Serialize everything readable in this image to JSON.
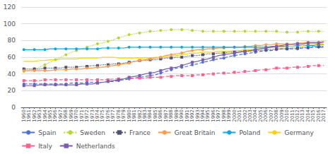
{
  "chart_data": {
    "type": "line",
    "x": [
      1960,
      1961,
      1962,
      1963,
      1964,
      1965,
      1966,
      1967,
      1968,
      1969,
      1970,
      1971,
      1972,
      1973,
      1974,
      1975,
      1976,
      1977,
      1978,
      1979,
      1980,
      1981,
      1982,
      1983,
      1984,
      1985,
      1986,
      1987,
      1988,
      1989,
      1990,
      1991,
      1992,
      1993,
      1994,
      1995,
      1996,
      1997,
      1998,
      1999,
      2000,
      2001,
      2002,
      2003,
      2004,
      2005,
      2006,
      2007,
      2008,
      2009,
      2010,
      2011,
      2012,
      2013,
      2014,
      2015,
      2016,
      2017
    ],
    "series": [
      {
        "name": "Spain",
        "marker": "circle",
        "line_style": "dashed",
        "values": [
          28,
          28,
          28,
          28,
          28,
          28,
          28,
          28,
          28,
          29,
          29,
          29,
          30,
          30,
          30,
          30,
          31,
          31,
          32,
          33,
          34,
          35,
          36,
          37,
          38,
          39,
          41,
          43,
          45,
          47,
          48,
          49,
          51,
          52,
          54,
          55,
          57,
          58,
          59,
          61,
          62,
          63,
          64,
          65,
          66,
          67,
          68,
          68,
          69,
          70,
          70,
          70,
          70,
          71,
          71,
          72,
          72,
          72
        ]
      },
      {
        "name": "Sweden",
        "marker": "circle",
        "line_style": "dotted",
        "values": [
          43,
          44,
          46,
          48,
          51,
          54,
          57,
          60,
          63,
          66,
          68,
          70,
          72,
          74,
          76,
          77,
          79,
          81,
          83,
          85,
          87,
          88,
          89,
          90,
          91,
          91,
          92,
          92,
          93,
          93,
          93,
          93,
          92,
          92,
          91,
          91,
          91,
          91,
          91,
          91,
          91,
          91,
          91,
          91,
          91,
          91,
          91,
          91,
          91,
          90,
          90,
          90,
          90,
          91,
          91,
          91,
          91,
          91
        ]
      },
      {
        "name": "France",
        "marker": "square",
        "line_style": "dotted",
        "values": [
          46,
          46,
          46,
          46,
          47,
          47,
          47,
          47,
          48,
          48,
          48,
          49,
          49,
          50,
          50,
          51,
          51,
          52,
          52,
          53,
          54,
          55,
          56,
          56,
          57,
          57,
          58,
          59,
          59,
          60,
          60,
          61,
          62,
          62,
          63,
          64,
          64,
          65,
          65,
          66,
          66,
          67,
          67,
          67,
          68,
          68,
          69,
          69,
          70,
          70,
          70,
          71,
          71,
          72,
          72,
          73,
          73,
          73
        ]
      },
      {
        "name": "Great Britain",
        "marker": "circle",
        "line_style": "solid",
        "values": [
          44,
          44,
          44,
          44,
          44,
          44,
          45,
          45,
          45,
          46,
          46,
          46,
          47,
          47,
          48,
          48,
          49,
          50,
          51,
          52,
          53,
          55,
          56,
          57,
          58,
          59,
          60,
          62,
          63,
          64,
          65,
          67,
          68,
          69,
          69,
          70,
          70,
          71,
          71,
          72,
          72,
          72,
          73,
          73,
          74,
          74,
          75,
          75,
          76,
          76,
          76,
          76,
          77,
          77,
          78,
          78,
          78,
          79
        ]
      },
      {
        "name": "Poland",
        "marker": "circle",
        "line_style": "solid",
        "values": [
          69,
          69,
          69,
          69,
          69,
          70,
          70,
          70,
          70,
          70,
          70,
          70,
          70,
          70,
          70,
          71,
          71,
          71,
          71,
          71,
          72,
          72,
          72,
          72,
          72,
          72,
          72,
          72,
          72,
          72,
          72,
          72,
          72,
          72,
          72,
          72,
          72,
          72,
          72,
          72,
          72,
          72,
          72,
          72,
          72,
          72,
          72,
          73,
          73,
          73,
          73,
          73,
          74,
          74,
          74,
          74,
          75,
          75
        ]
      },
      {
        "name": "Germany",
        "marker": "none",
        "line_style": "solid",
        "values": [
          55,
          55,
          55,
          56,
          56,
          57,
          57,
          58,
          58,
          58,
          58,
          59,
          59,
          59,
          59,
          60,
          60,
          60,
          59,
          59,
          59,
          59,
          59,
          59,
          59,
          60,
          60,
          61,
          61,
          62,
          63,
          64,
          65,
          65,
          66,
          66,
          66,
          67,
          67,
          67,
          68,
          68,
          69,
          69,
          70,
          70,
          71,
          72,
          72,
          72,
          73,
          73,
          73,
          74,
          75,
          75,
          76,
          76
        ]
      },
      {
        "name": "Italy",
        "marker": "square",
        "line_style": "dashed",
        "values": [
          32,
          32,
          32,
          32,
          33,
          33,
          33,
          33,
          33,
          33,
          33,
          33,
          33,
          33,
          33,
          33,
          33,
          34,
          34,
          34,
          35,
          35,
          35,
          35,
          36,
          36,
          36,
          37,
          37,
          38,
          38,
          38,
          38,
          39,
          39,
          40,
          40,
          41,
          41,
          41,
          42,
          42,
          43,
          43,
          44,
          45,
          45,
          46,
          47,
          47,
          47,
          48,
          48,
          48,
          49,
          50,
          50,
          50
        ]
      },
      {
        "name": "Netherlands",
        "marker": "square",
        "line_style": "solid",
        "values": [
          26,
          26,
          26,
          27,
          27,
          27,
          27,
          27,
          27,
          27,
          27,
          28,
          28,
          28,
          29,
          30,
          31,
          32,
          33,
          34,
          36,
          37,
          38,
          40,
          41,
          42,
          44,
          46,
          47,
          48,
          50,
          52,
          54,
          55,
          57,
          58,
          60,
          62,
          63,
          64,
          65,
          66,
          67,
          68,
          69,
          70,
          71,
          72,
          73,
          74,
          75,
          75,
          76,
          76,
          77,
          77,
          77,
          78
        ]
      }
    ],
    "xlim": [
      1959.5,
      2017.5
    ],
    "xticks": [
      1960,
      1961,
      1962,
      1963,
      1964,
      1965,
      1966,
      1967,
      1968,
      1969,
      1970,
      1971,
      1972,
      1973,
      1974,
      1975,
      1976,
      1977,
      1978,
      1979,
      1980,
      1981,
      1982,
      1983,
      1984,
      1985,
      1986,
      1987,
      1988,
      1989,
      1990,
      1991,
      1992,
      1993,
      1994,
      1995,
      1996,
      1997,
      1998,
      1999,
      2000,
      2001,
      2002,
      2003,
      2004,
      2005,
      2006,
      2007,
      2008,
      2009,
      2010,
      2011,
      2012,
      2013,
      2014,
      2015,
      2016,
      2017
    ],
    "ylim": [
      0,
      120
    ],
    "yticks": [
      0,
      20,
      40,
      60,
      80,
      100,
      120
    ],
    "grid": true,
    "legend": "bottom"
  }
}
